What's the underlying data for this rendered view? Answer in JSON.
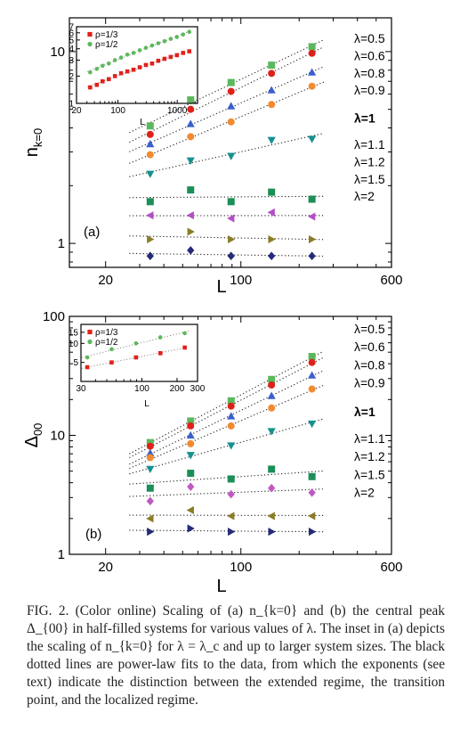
{
  "chart_data": [
    {
      "id": "a",
      "type": "scatter",
      "panel_label": "(a)",
      "xlabel": "L",
      "ylabel": "n_{k=0}",
      "xscale": "log",
      "yscale": "log",
      "xlim": [
        13,
        600
      ],
      "ylim": [
        0.75,
        15
      ],
      "xticks": [
        20,
        100,
        600
      ],
      "yticks": [
        1,
        10
      ],
      "x": [
        34,
        55,
        89,
        144,
        233
      ],
      "fits": "dotted power-law",
      "series": [
        {
          "name": "λ=0.5",
          "marker": "square",
          "color": "#5cb85c",
          "values": [
            4.1,
            5.6,
            6.9,
            8.5,
            10.6
          ]
        },
        {
          "name": "λ=0.6",
          "marker": "circle",
          "color": "#e0211a",
          "values": [
            3.7,
            5.0,
            6.2,
            7.7,
            9.8
          ]
        },
        {
          "name": "λ=0.8",
          "marker": "triangle-up",
          "color": "#3a5fcd",
          "values": [
            3.3,
            4.2,
            5.2,
            6.3,
            7.8
          ]
        },
        {
          "name": "λ=0.9",
          "marker": "circle",
          "color": "#f28a30",
          "values": [
            2.9,
            3.6,
            4.3,
            5.3,
            6.6
          ]
        },
        {
          "name": "λ=1",
          "bold": true,
          "marker": "triangle-down",
          "color": "#16918f",
          "values": [
            2.3,
            2.7,
            2.85,
            3.45,
            3.5
          ]
        },
        {
          "name": "λ=1.1",
          "marker": "square",
          "color": "#1b8f57",
          "values": [
            1.65,
            1.9,
            1.65,
            1.85,
            1.7
          ]
        },
        {
          "name": "λ=1.2",
          "marker": "triangle-left",
          "color": "#b44fc8",
          "values": [
            1.4,
            1.4,
            1.35,
            1.45,
            1.38
          ]
        },
        {
          "name": "λ=1.5",
          "marker": "triangle-right",
          "color": "#8a7d28",
          "values": [
            1.05,
            1.15,
            1.05,
            1.05,
            1.05
          ]
        },
        {
          "name": "λ=2",
          "marker": "diamond",
          "color": "#252a7a",
          "values": [
            0.86,
            0.92,
            0.86,
            0.86,
            0.86
          ]
        }
      ],
      "inset": {
        "type": "scatter",
        "xlabel": "L",
        "xscale": "log",
        "yscale": "log",
        "xlim": [
          20,
          2200
        ],
        "ylim": [
          1,
          7
        ],
        "xticks": [
          20,
          100,
          1000
        ],
        "yticks": [
          1,
          2,
          3,
          4,
          5,
          6,
          7
        ],
        "legend": "top-left",
        "series": [
          {
            "name": "ρ=1/3",
            "marker": "square",
            "color": "#e0211a",
            "x": [
              34,
              44,
              55,
              70,
              89,
              113,
              144,
              183,
              233,
              296,
              377,
              479,
              610,
              776,
              987,
              1255,
              1597
            ],
            "values": [
              1.5,
              1.6,
              1.75,
              1.85,
              2.0,
              2.15,
              2.25,
              2.35,
              2.5,
              2.65,
              2.75,
              2.95,
              3.1,
              3.25,
              3.4,
              3.6,
              3.75
            ]
          },
          {
            "name": "ρ=1/2",
            "marker": "circle",
            "color": "#5cb85c",
            "x": [
              34,
              44,
              55,
              70,
              89,
              113,
              144,
              183,
              233,
              296,
              377,
              479,
              610,
              776,
              987,
              1255,
              1597
            ],
            "values": [
              2.2,
              2.4,
              2.6,
              2.75,
              3.0,
              3.2,
              3.45,
              3.6,
              3.85,
              4.1,
              4.35,
              4.6,
              4.85,
              5.15,
              5.4,
              5.75,
              6.15
            ]
          }
        ]
      }
    },
    {
      "id": "b",
      "type": "scatter",
      "panel_label": "(b)",
      "xlabel": "L",
      "ylabel": "Δ_{00}",
      "xscale": "log",
      "yscale": "log",
      "xlim": [
        13,
        600
      ],
      "ylim": [
        1,
        100
      ],
      "xticks": [
        20,
        100,
        600
      ],
      "yticks": [
        1,
        10,
        100
      ],
      "x": [
        34,
        55,
        89,
        144,
        233
      ],
      "fits": "dotted power-law",
      "series": [
        {
          "name": "λ=0.5",
          "marker": "square",
          "color": "#5cb85c",
          "values": [
            8.7,
            13.2,
            19.5,
            29.5,
            46
          ]
        },
        {
          "name": "λ=0.6",
          "marker": "circle",
          "color": "#e0211a",
          "values": [
            8.1,
            12.0,
            17.6,
            26.5,
            41
          ]
        },
        {
          "name": "λ=0.8",
          "marker": "triangle-up",
          "color": "#3a5fcd",
          "values": [
            7.1,
            10.0,
            14.5,
            21.5,
            32
          ]
        },
        {
          "name": "λ=0.9",
          "marker": "circle",
          "color": "#f28a30",
          "values": [
            6.5,
            8.5,
            12.0,
            17.0,
            24.5
          ]
        },
        {
          "name": "λ=1",
          "bold": true,
          "marker": "triangle-down",
          "color": "#16918f",
          "values": [
            5.2,
            6.8,
            8.2,
            10.8,
            12.5
          ]
        },
        {
          "name": "λ=1.1",
          "marker": "square",
          "color": "#1b8f57",
          "values": [
            3.6,
            4.8,
            4.3,
            5.2,
            4.5
          ]
        },
        {
          "name": "λ=1.2",
          "marker": "diamond",
          "color": "#c05ac0",
          "values": [
            2.8,
            3.7,
            3.2,
            3.6,
            3.3
          ]
        },
        {
          "name": "λ=1.5",
          "marker": "triangle-left",
          "color": "#8a7d28",
          "values": [
            2.0,
            2.35,
            2.1,
            2.1,
            2.1
          ]
        },
        {
          "name": "λ=2",
          "marker": "triangle-right",
          "color": "#252a7a",
          "values": [
            1.55,
            1.65,
            1.55,
            1.55,
            1.55
          ]
        }
      ],
      "inset": {
        "type": "scatter",
        "xlabel": "L",
        "xscale": "log",
        "yscale": "log",
        "xlim": [
          30,
          300
        ],
        "ylim": [
          2.5,
          20
        ],
        "xticks": [
          30,
          100,
          200,
          300
        ],
        "yticks": [
          5,
          10,
          15
        ],
        "legend": "top-left",
        "series": [
          {
            "name": "ρ=1/3",
            "marker": "square",
            "color": "#e0211a",
            "x": [
              34,
              55,
              89,
              144,
              233
            ],
            "values": [
              4.2,
              5.0,
              6.0,
              7.0,
              8.6
            ]
          },
          {
            "name": "ρ=1/2",
            "marker": "circle",
            "color": "#5cb85c",
            "x": [
              34,
              55,
              89,
              144,
              233
            ],
            "values": [
              6.0,
              8.1,
              10.0,
              12.5,
              14.5
            ]
          }
        ]
      }
    }
  ],
  "caption": {
    "label": "FIG. 2.",
    "text": "(Color online) Scaling of (a) n_{k=0} and (b) the central peak Δ_{00} in half-filled systems for various values of λ. The inset in (a) depicts the scaling of n_{k=0} for λ = λ_c and up to larger system sizes. The black dotted lines are power-law fits to the data, from which the exponents (see text) indicate the distinction between the extended regime, the transition point, and the localized regime."
  }
}
